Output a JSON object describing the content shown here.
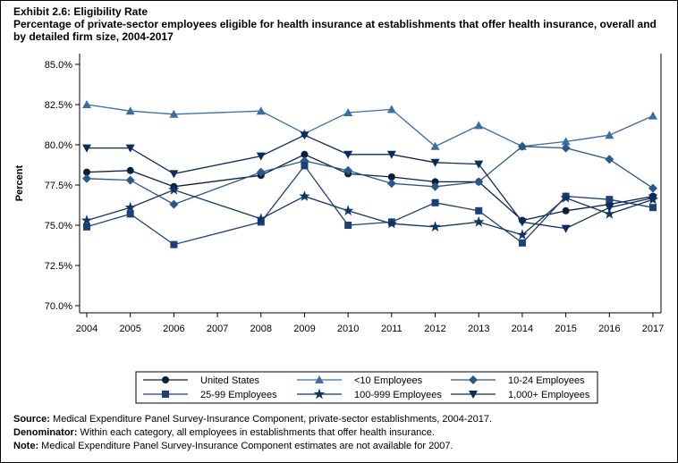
{
  "exhibit_title": "Exhibit 2.6: Eligibility Rate",
  "subtitle": "Percentage of private-sector employees eligible for health insurance at establishments that offer health insurance, overall and by detailed firm size, 2004-2017",
  "chart_data": {
    "type": "line",
    "title": "Exhibit 2.6: Eligibility Rate",
    "ylabel": "Percent",
    "xlabel": "",
    "ylim": [
      70,
      85
    ],
    "yticks": [
      "70.0%",
      "72.5%",
      "75.0%",
      "77.5%",
      "80.0%",
      "82.5%",
      "85.0%"
    ],
    "ytick_values": [
      70,
      72.5,
      75,
      77.5,
      80,
      82.5,
      85
    ],
    "x_ticks": [
      "2004",
      "2005",
      "2006",
      "2007",
      "2008",
      "2009",
      "2010",
      "2011",
      "2012",
      "2013",
      "2014",
      "2015",
      "2016",
      "2017"
    ],
    "x": [
      2004,
      2005,
      2006,
      2008,
      2009,
      2010,
      2011,
      2012,
      2013,
      2014,
      2015,
      2016,
      2017
    ],
    "grid": false,
    "legend_placement": "bottom",
    "series": [
      {
        "name": "United States",
        "marker": "circle",
        "color": "#0b1f3d",
        "values": [
          78.3,
          78.4,
          77.4,
          78.1,
          79.4,
          78.2,
          78.0,
          77.7,
          77.7,
          75.3,
          75.9,
          76.3,
          76.8
        ]
      },
      {
        "name": "<10 Employees",
        "marker": "triangle",
        "color": "#3b6ea3",
        "values": [
          82.5,
          82.1,
          81.9,
          82.1,
          80.7,
          82.0,
          82.2,
          79.9,
          81.2,
          79.9,
          80.2,
          80.6,
          81.8
        ]
      },
      {
        "name": "10-24 Employees",
        "marker": "diamond",
        "color": "#2a5888",
        "values": [
          77.9,
          77.8,
          76.3,
          78.3,
          79.0,
          78.4,
          77.6,
          77.4,
          77.7,
          79.9,
          79.8,
          79.1,
          77.3
        ]
      },
      {
        "name": "25-99 Employees",
        "marker": "square",
        "color": "#1d3f78",
        "values": [
          74.9,
          75.7,
          73.8,
          75.2,
          78.7,
          75.0,
          75.2,
          76.4,
          75.9,
          73.9,
          76.8,
          76.6,
          76.1
        ]
      },
      {
        "name": "100-999 Employees",
        "marker": "star",
        "color": "#103565",
        "values": [
          75.3,
          76.1,
          77.2,
          75.4,
          76.8,
          75.9,
          75.1,
          74.9,
          75.2,
          74.4,
          76.7,
          75.7,
          76.6
        ]
      },
      {
        "name": "1,000+ Employees",
        "marker": "down-triangle",
        "color": "#0a2c5a",
        "values": [
          79.8,
          79.8,
          78.2,
          79.3,
          80.6,
          79.4,
          79.4,
          78.9,
          78.8,
          75.2,
          74.8,
          76.1,
          76.7
        ]
      }
    ]
  },
  "notes": [
    {
      "label": "Source:",
      "text": " Medical Expenditure Panel Survey-Insurance Component, private-sector establishments, 2004-2017."
    },
    {
      "label": "Denominator:",
      "text": " Within each category, all employees in establishments that offer health insurance."
    },
    {
      "label": "Note:",
      "text": " Medical Expenditure Panel Survey-Insurance Component estimates are not available for 2007."
    }
  ]
}
